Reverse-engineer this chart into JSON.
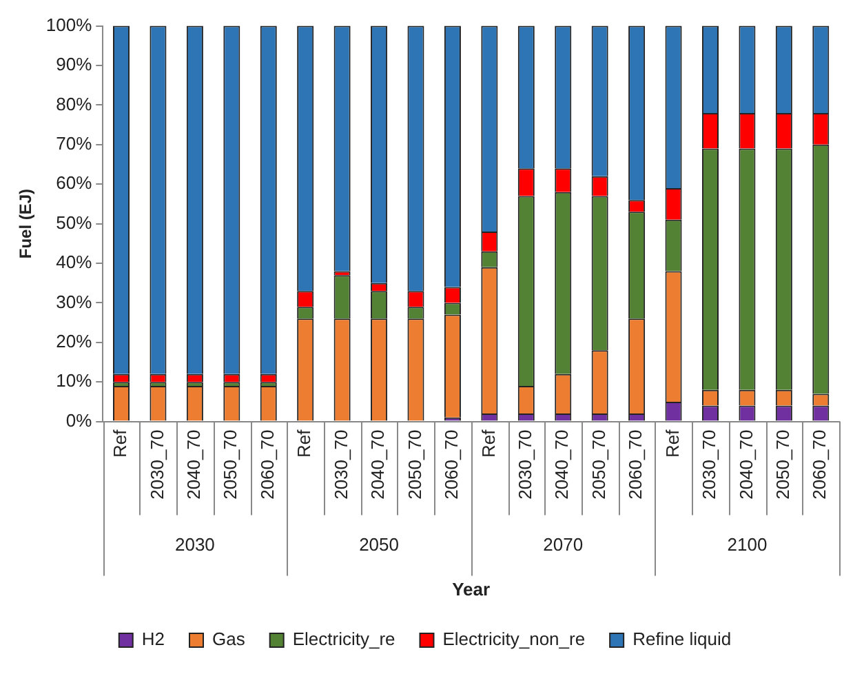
{
  "chart_data": {
    "type": "bar",
    "stacked": true,
    "xlabel": "Year",
    "ylabel": "Fuel (EJ)",
    "categories": [
      "Ref",
      "2030_70",
      "2040_70",
      "2050_70",
      "2060_70",
      "Ref",
      "2030_70",
      "2040_70",
      "2050_70",
      "2060_70",
      "Ref",
      "2030_70",
      "2040_70",
      "2050_70",
      "2060_70",
      "Ref",
      "2030_70",
      "2040_70",
      "2050_70",
      "2060_70"
    ],
    "annotations": [
      "2030",
      "2050",
      "2070",
      "2100"
    ],
    "series": [
      {
        "name": "H2",
        "color": "#7030a0",
        "values": [
          0,
          0,
          0,
          0,
          0,
          0,
          0,
          0,
          0,
          1,
          2,
          2,
          2,
          2,
          2,
          5,
          4,
          4,
          4,
          4
        ]
      },
      {
        "name": "Gas",
        "color": "#ed7d31",
        "values": [
          9,
          9,
          9,
          9,
          9,
          26,
          26,
          26,
          26,
          26,
          37,
          7,
          10,
          16,
          24,
          33,
          4,
          4,
          4,
          3
        ]
      },
      {
        "name": "Electricity_re",
        "color": "#548235",
        "values": [
          1,
          1,
          1,
          1,
          1,
          3,
          11,
          7,
          3,
          3,
          4,
          48,
          46,
          39,
          27,
          13,
          61,
          61,
          61,
          63
        ]
      },
      {
        "name": "Electricity_non_re",
        "color": "#ff0000",
        "values": [
          2,
          2,
          2,
          2,
          2,
          4,
          1,
          2,
          4,
          4,
          5,
          7,
          6,
          5,
          3,
          8,
          9,
          9,
          9,
          8
        ]
      },
      {
        "name": "Refine liquid",
        "color": "#2e75b6",
        "values": [
          88,
          88,
          88,
          88,
          88,
          67,
          62,
          65,
          67,
          66,
          52,
          36,
          36,
          38,
          44,
          41,
          22,
          22,
          22,
          22
        ]
      }
    ],
    "ylim": [
      0,
      100
    ],
    "yticks": [
      {
        "value": 0,
        "label": "0%"
      },
      {
        "value": 10,
        "label": "10%"
      },
      {
        "value": 20,
        "label": "20%"
      },
      {
        "value": 30,
        "label": "30%"
      },
      {
        "value": 40,
        "label": "40%"
      },
      {
        "value": 50,
        "label": "50%"
      },
      {
        "value": 60,
        "label": "60%"
      },
      {
        "value": 70,
        "label": "70%"
      },
      {
        "value": 80,
        "label": "80%"
      },
      {
        "value": 90,
        "label": "90%"
      },
      {
        "value": 100,
        "label": "100%"
      }
    ],
    "grid": false,
    "legend": "bottom"
  }
}
